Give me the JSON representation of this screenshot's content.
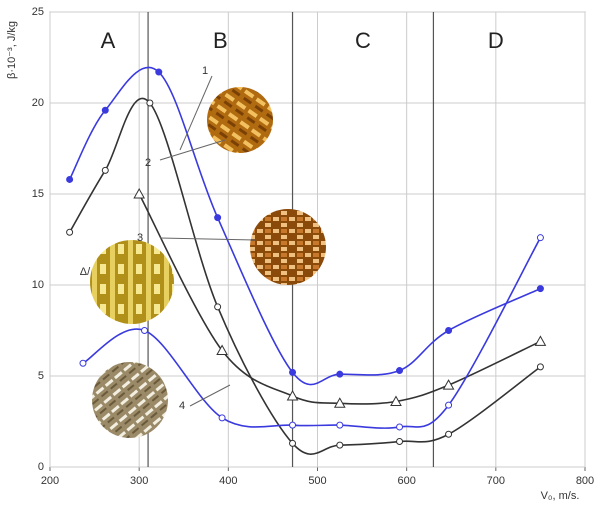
{
  "chart_data": {
    "type": "line",
    "y_label": "β·10⁻³, J/kg",
    "x_label": "V₀, m/s.",
    "xlim": [
      200,
      800
    ],
    "xticks": [
      200,
      300,
      400,
      500,
      600,
      700,
      800
    ],
    "ylim": [
      0,
      25
    ],
    "yticks": [
      0,
      5,
      10,
      15,
      20,
      25
    ],
    "grid": true,
    "regions": [
      "A",
      "B",
      "C",
      "D"
    ],
    "region_bounds": [
      310,
      472,
      630
    ],
    "annotations": [
      "1",
      "2",
      "3",
      "4",
      "Δ/"
    ],
    "series": [
      {
        "name": "1",
        "color": "#3a3adf",
        "marker": "filled-circle",
        "x": [
          222,
          262,
          322,
          388,
          472,
          525,
          592,
          647,
          750
        ],
        "values": [
          15.8,
          19.6,
          21.7,
          13.7,
          5.2,
          5.1,
          5.3,
          7.5,
          9.8
        ]
      },
      {
        "name": "2",
        "color": "#333333",
        "marker": "circle",
        "x": [
          222,
          262,
          312,
          388,
          472,
          525,
          592,
          647,
          750
        ],
        "values": [
          12.9,
          16.3,
          20.0,
          8.8,
          1.3,
          1.2,
          1.4,
          1.8,
          5.5
        ]
      },
      {
        "name": "3",
        "color": "#333333",
        "marker": "triangle",
        "x": [
          300,
          393,
          472,
          525,
          588,
          647,
          750
        ],
        "values": [
          15.0,
          6.4,
          3.9,
          3.5,
          3.6,
          4.5,
          6.9
        ]
      },
      {
        "name": "4",
        "color": "#3a3adf",
        "marker": "circle",
        "x": [
          237,
          306,
          393,
          472,
          525,
          592,
          647,
          750
        ],
        "values": [
          5.7,
          7.5,
          2.7,
          2.3,
          2.3,
          2.2,
          3.4,
          12.6
        ]
      }
    ]
  }
}
